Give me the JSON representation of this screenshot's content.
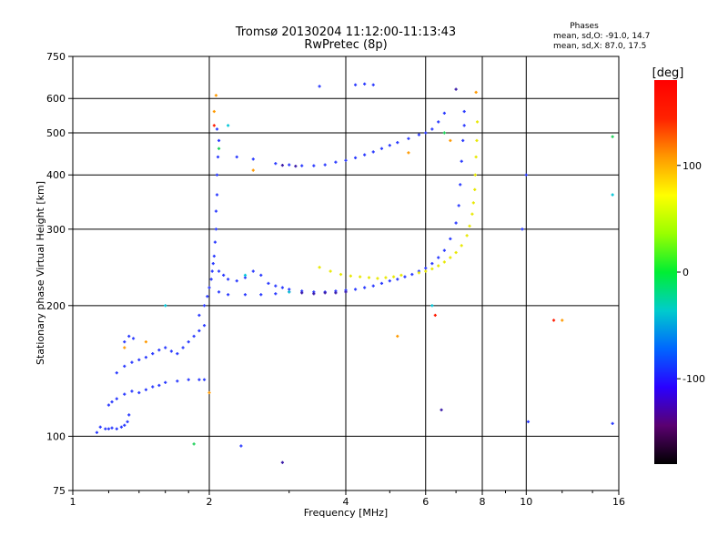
{
  "chart_data": {
    "type": "scatter",
    "title": "Tromsø 20130204 11:12:00-11:13:43",
    "subtitle": "RwPretec (8p)",
    "stats": {
      "heading": "Phases",
      "line_o": "mean, sd,O: -91.0, 14.7",
      "line_x": "mean, sd,X:  87.0, 17.5"
    },
    "xlabel": "Frequency [MHz]",
    "ylabel": "Stationary phase Virtual Height [km]",
    "x_scale": "log",
    "y_scale": "log",
    "xlim": [
      1,
      16
    ],
    "ylim": [
      75,
      750
    ],
    "x_ticks": [
      1,
      2,
      4,
      6,
      8,
      10,
      16
    ],
    "x_tick_labels": [
      "1",
      "2",
      "4",
      "6",
      "8",
      "10",
      "16"
    ],
    "y_ticks": [
      75,
      100,
      200,
      300,
      400,
      500,
      600,
      750
    ],
    "y_tick_labels": [
      "75",
      "100",
      "200",
      "300",
      "400",
      "500",
      "600",
      "750"
    ],
    "grid": true,
    "colorbar": {
      "label": "[deg]",
      "range": [
        -180,
        180
      ],
      "ticks": [
        -100,
        0,
        100
      ],
      "tick_labels": [
        "-100",
        "0",
        "100"
      ],
      "colors": [
        "#000000",
        "#5a0070",
        "#2a00ff",
        "#0066ff",
        "#00cccc",
        "#00ee33",
        "#99ff00",
        "#ffff00",
        "#ff9900",
        "#ff2200",
        "#ff0000"
      ]
    },
    "series": [
      {
        "phase": -100,
        "color": "#2b3bff",
        "points": [
          [
            1.15,
            105
          ],
          [
            1.18,
            104
          ],
          [
            1.2,
            104
          ],
          [
            1.22,
            104.5
          ],
          [
            1.25,
            104
          ],
          [
            1.28,
            105
          ],
          [
            1.3,
            106
          ],
          [
            1.32,
            108
          ],
          [
            1.33,
            112
          ],
          [
            1.13,
            102
          ],
          [
            1.2,
            118
          ],
          [
            1.22,
            120
          ],
          [
            1.25,
            122
          ],
          [
            1.3,
            125
          ],
          [
            1.35,
            127
          ],
          [
            1.4,
            126
          ],
          [
            1.45,
            128
          ],
          [
            1.5,
            130
          ],
          [
            1.55,
            131
          ],
          [
            1.6,
            133
          ],
          [
            1.7,
            134
          ],
          [
            1.8,
            135
          ],
          [
            1.9,
            135
          ],
          [
            1.95,
            135
          ],
          [
            1.25,
            140
          ],
          [
            1.3,
            145
          ],
          [
            1.35,
            148
          ],
          [
            1.4,
            150
          ],
          [
            1.45,
            152
          ],
          [
            1.5,
            155
          ],
          [
            1.55,
            158
          ],
          [
            1.6,
            160
          ],
          [
            1.65,
            157
          ],
          [
            1.7,
            155
          ],
          [
            1.75,
            160
          ],
          [
            1.8,
            165
          ],
          [
            1.85,
            170
          ],
          [
            1.9,
            175
          ],
          [
            1.95,
            180
          ],
          [
            1.3,
            165
          ],
          [
            1.33,
            170
          ],
          [
            1.36,
            168
          ],
          [
            1.9,
            190
          ],
          [
            1.95,
            200
          ],
          [
            1.98,
            210
          ],
          [
            2.0,
            220
          ],
          [
            2.02,
            230
          ],
          [
            2.03,
            240
          ],
          [
            2.04,
            250
          ],
          [
            2.05,
            260
          ],
          [
            2.06,
            280
          ],
          [
            2.07,
            300
          ],
          [
            2.07,
            330
          ],
          [
            2.08,
            360
          ],
          [
            2.08,
            400
          ],
          [
            2.09,
            440
          ],
          [
            2.1,
            480
          ],
          [
            2.08,
            510
          ],
          [
            2.1,
            240
          ],
          [
            2.15,
            235
          ],
          [
            2.2,
            230
          ],
          [
            2.3,
            228
          ],
          [
            2.4,
            232
          ],
          [
            2.5,
            240
          ],
          [
            2.6,
            235
          ],
          [
            2.7,
            225
          ],
          [
            2.8,
            222
          ],
          [
            2.9,
            220
          ],
          [
            3.0,
            218
          ],
          [
            3.2,
            216
          ],
          [
            3.4,
            215
          ],
          [
            3.6,
            215
          ],
          [
            3.8,
            216
          ],
          [
            4.0,
            217
          ],
          [
            4.2,
            218
          ],
          [
            4.4,
            220
          ],
          [
            4.6,
            222
          ],
          [
            4.8,
            225
          ],
          [
            5.0,
            228
          ],
          [
            5.2,
            230
          ],
          [
            5.4,
            233
          ],
          [
            5.6,
            236
          ],
          [
            5.8,
            240
          ],
          [
            6.0,
            244
          ],
          [
            6.2,
            250
          ],
          [
            6.4,
            258
          ],
          [
            6.6,
            268
          ],
          [
            6.8,
            285
          ],
          [
            7.0,
            310
          ],
          [
            7.1,
            340
          ],
          [
            7.15,
            380
          ],
          [
            7.2,
            430
          ],
          [
            7.25,
            480
          ],
          [
            7.3,
            520
          ],
          [
            7.3,
            560
          ],
          [
            2.1,
            215
          ],
          [
            2.2,
            212
          ],
          [
            2.4,
            212
          ],
          [
            2.6,
            212
          ],
          [
            2.8,
            213
          ],
          [
            2.3,
            440
          ],
          [
            2.5,
            435
          ],
          [
            2.8,
            425
          ],
          [
            3.0,
            422
          ],
          [
            3.2,
            420
          ],
          [
            3.4,
            420
          ],
          [
            3.6,
            422
          ],
          [
            3.8,
            428
          ],
          [
            4.0,
            432
          ],
          [
            4.2,
            438
          ],
          [
            4.4,
            445
          ],
          [
            4.6,
            452
          ],
          [
            4.8,
            460
          ],
          [
            5.0,
            468
          ],
          [
            5.2,
            475
          ],
          [
            5.5,
            485
          ],
          [
            5.8,
            495
          ],
          [
            6.0,
            500
          ],
          [
            6.2,
            510
          ],
          [
            6.4,
            530
          ],
          [
            6.6,
            555
          ],
          [
            3.5,
            640
          ],
          [
            4.2,
            645
          ],
          [
            4.4,
            648
          ],
          [
            4.6,
            645
          ],
          [
            10.0,
            400
          ],
          [
            9.8,
            300
          ],
          [
            10.1,
            108
          ],
          [
            15.5,
            107
          ],
          [
            2.35,
            95
          ]
        ]
      },
      {
        "phase": -125,
        "color": "#3a1aa8",
        "points": [
          [
            3.0,
            215
          ],
          [
            3.2,
            214
          ],
          [
            3.4,
            213
          ],
          [
            3.6,
            214
          ],
          [
            3.8,
            214
          ],
          [
            4.0,
            215
          ],
          [
            2.9,
            87
          ],
          [
            6.5,
            115
          ],
          [
            7.0,
            630
          ],
          [
            2.9,
            421
          ],
          [
            3.1,
            419
          ]
        ]
      },
      {
        "phase": 100,
        "color": "#e8e800",
        "points": [
          [
            3.5,
            245
          ],
          [
            3.7,
            240
          ],
          [
            3.9,
            236
          ],
          [
            4.1,
            234
          ],
          [
            4.3,
            233
          ],
          [
            4.5,
            232
          ],
          [
            4.7,
            231
          ],
          [
            4.9,
            232
          ],
          [
            5.1,
            233
          ],
          [
            5.3,
            235
          ],
          [
            5.8,
            238
          ],
          [
            6.0,
            240
          ],
          [
            6.2,
            243
          ],
          [
            6.4,
            247
          ],
          [
            6.6,
            252
          ],
          [
            6.8,
            258
          ],
          [
            7.0,
            265
          ],
          [
            7.2,
            275
          ],
          [
            7.4,
            290
          ],
          [
            7.5,
            305
          ],
          [
            7.6,
            325
          ],
          [
            7.65,
            345
          ],
          [
            7.7,
            370
          ],
          [
            7.72,
            400
          ],
          [
            7.75,
            440
          ],
          [
            7.78,
            480
          ],
          [
            7.8,
            530
          ]
        ]
      },
      {
        "phase": 130,
        "color": "#ff9a00",
        "points": [
          [
            2.05,
            560
          ],
          [
            2.07,
            610
          ],
          [
            7.75,
            620
          ],
          [
            5.2,
            170
          ],
          [
            6.8,
            480
          ],
          [
            5.5,
            450
          ],
          [
            2.5,
            410
          ],
          [
            1.45,
            165
          ],
          [
            2.0,
            126
          ],
          [
            12.0,
            185
          ],
          [
            1.3,
            160
          ]
        ]
      },
      {
        "phase": 5,
        "color": "#1fd15a",
        "points": [
          [
            1.85,
            96
          ],
          [
            2.1,
            460
          ],
          [
            15.5,
            490
          ],
          [
            6.6,
            500
          ]
        ]
      },
      {
        "phase": -40,
        "color": "#00c6d8",
        "points": [
          [
            1.6,
            200
          ],
          [
            2.2,
            520
          ],
          [
            2.4,
            235
          ],
          [
            15.5,
            360
          ],
          [
            6.2,
            200
          ],
          [
            3.0,
            215
          ]
        ]
      },
      {
        "phase": 170,
        "color": "#ff1a00",
        "points": [
          [
            11.5,
            185
          ],
          [
            6.3,
            190
          ],
          [
            2.05,
            520
          ]
        ]
      }
    ]
  }
}
